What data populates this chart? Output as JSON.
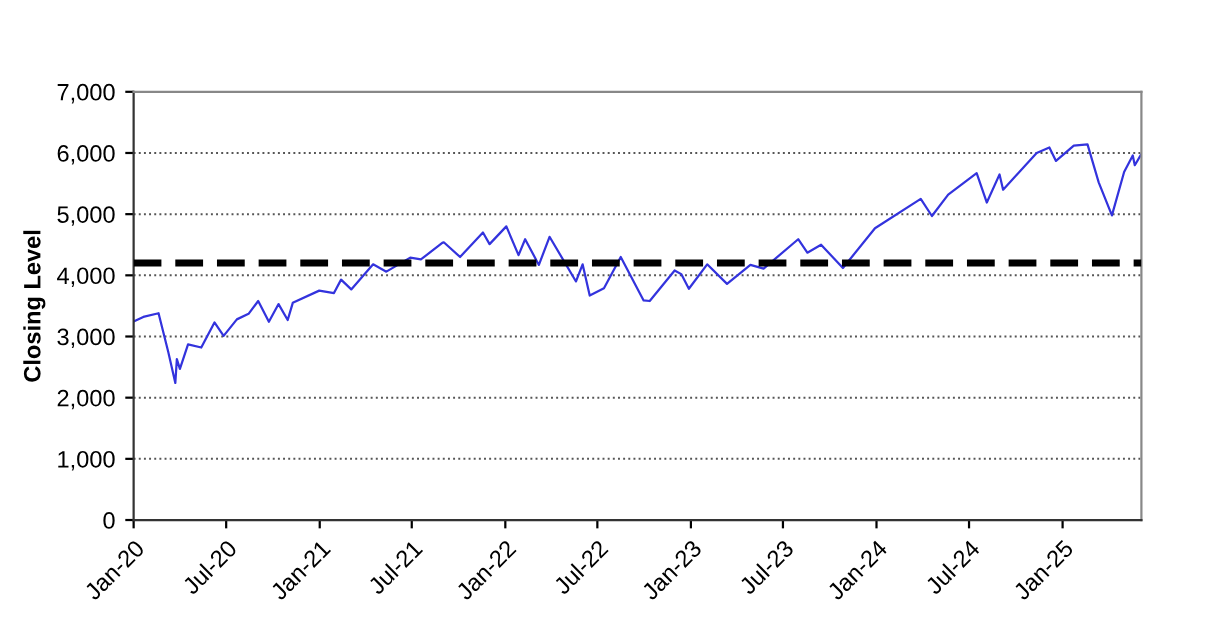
{
  "chart_data": {
    "type": "line",
    "ylabel": "Closing Level",
    "x": [
      "2020-01-02",
      "2020-01-20",
      "2020-02-19",
      "2020-03-09",
      "2020-03-23",
      "2020-03-26",
      "2020-04-01",
      "2020-04-17",
      "2020-05-13",
      "2020-06-08",
      "2020-06-26",
      "2020-07-22",
      "2020-08-14",
      "2020-09-02",
      "2020-09-23",
      "2020-10-12",
      "2020-10-30",
      "2020-11-09",
      "2020-12-31",
      "2021-01-29",
      "2021-02-12",
      "2021-03-04",
      "2021-04-16",
      "2021-05-12",
      "2021-06-28",
      "2021-07-19",
      "2021-08-30",
      "2021-09-02",
      "2021-10-04",
      "2021-11-18",
      "2021-12-01",
      "2022-01-03",
      "2022-01-27",
      "2022-02-09",
      "2022-03-08",
      "2022-03-29",
      "2022-05-20",
      "2022-06-02",
      "2022-06-16",
      "2022-07-14",
      "2022-08-16",
      "2022-09-30",
      "2022-10-12",
      "2022-11-30",
      "2022-12-13",
      "2022-12-28",
      "2023-02-02",
      "2023-03-13",
      "2023-04-28",
      "2023-05-24",
      "2023-07-31",
      "2023-08-18",
      "2023-09-14",
      "2023-10-27",
      "2023-12-29",
      "2024-03-28",
      "2024-04-19",
      "2024-05-21",
      "2024-07-16",
      "2024-08-05",
      "2024-08-30",
      "2024-09-06",
      "2024-11-11",
      "2024-12-06",
      "2024-12-19",
      "2025-01-23",
      "2025-02-19",
      "2025-03-13",
      "2025-04-08",
      "2025-05-02",
      "2025-05-19",
      "2025-05-23",
      "2025-06-04"
    ],
    "series": [
      {
        "color": "#3333dd",
        "values": [
          3250,
          3320,
          3380,
          2750,
          2240,
          2630,
          2470,
          2870,
          2820,
          3230,
          3010,
          3280,
          3370,
          3580,
          3240,
          3530,
          3270,
          3550,
          3750,
          3710,
          3930,
          3770,
          4180,
          4060,
          4290,
          4260,
          4530,
          4540,
          4300,
          4700,
          4510,
          4800,
          4330,
          4590,
          4170,
          4630,
          3900,
          4180,
          3670,
          3790,
          4300,
          3590,
          3580,
          4080,
          4020,
          3780,
          4180,
          3860,
          4170,
          4110,
          4590,
          4370,
          4500,
          4120,
          4770,
          5250,
          4970,
          5320,
          5670,
          5190,
          5650,
          5400,
          6000,
          6090,
          5870,
          6120,
          6140,
          5520,
          4980,
          5690,
          5960,
          5800,
          5970
        ]
      }
    ],
    "xlim": [
      "2020-01-01",
      "2025-06-05"
    ],
    "xticks": [
      {
        "value": "2020-01-01",
        "label": "Jan-20"
      },
      {
        "value": "2020-07-01",
        "label": "Jul-20"
      },
      {
        "value": "2021-01-01",
        "label": "Jan-21"
      },
      {
        "value": "2021-07-01",
        "label": "Jul-21"
      },
      {
        "value": "2022-01-01",
        "label": "Jan-22"
      },
      {
        "value": "2022-07-01",
        "label": "Jul-22"
      },
      {
        "value": "2023-01-01",
        "label": "Jan-23"
      },
      {
        "value": "2023-07-01",
        "label": "Jul-23"
      },
      {
        "value": "2024-01-01",
        "label": "Jan-24"
      },
      {
        "value": "2024-07-01",
        "label": "Jul-24"
      },
      {
        "value": "2025-01-01",
        "label": "Jan-25"
      }
    ],
    "ylim": [
      0,
      7000
    ],
    "yticks": [
      {
        "value": 0,
        "label": "0"
      },
      {
        "value": 1000,
        "label": "1,000"
      },
      {
        "value": 2000,
        "label": "2,000"
      },
      {
        "value": 3000,
        "label": "3,000"
      },
      {
        "value": 4000,
        "label": "4,000"
      },
      {
        "value": 5000,
        "label": "5,000"
      },
      {
        "value": 6000,
        "label": "6,000"
      },
      {
        "value": 7000,
        "label": "7,000"
      }
    ],
    "grid": "y",
    "ref_lines": [
      {
        "axis": "y",
        "value": 4200,
        "color": "#000000",
        "line_style": "dashed"
      }
    ]
  }
}
